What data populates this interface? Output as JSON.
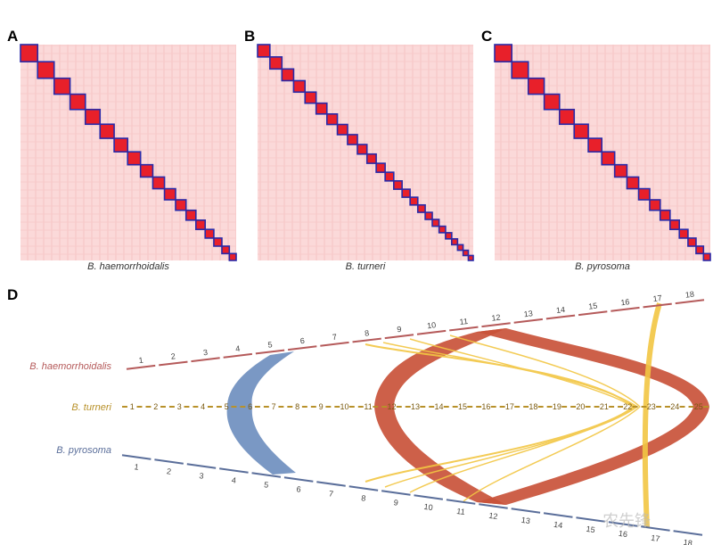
{
  "panels": [
    {
      "label": "A",
      "caption": "B. haemorrhoidalis"
    },
    {
      "label": "B",
      "caption": "B. turneri"
    },
    {
      "label": "C",
      "caption": "B. pyrosoma"
    }
  ],
  "synteny": {
    "label": "D",
    "tracks": [
      {
        "name": "B. haemorrhoidalis",
        "chromosomes": [
          1,
          2,
          3,
          4,
          5,
          6,
          7,
          8,
          9,
          10,
          11,
          12,
          13,
          14,
          15,
          16,
          17,
          18
        ]
      },
      {
        "name": "B. turneri",
        "chromosomes": [
          1,
          2,
          3,
          4,
          5,
          6,
          7,
          8,
          9,
          10,
          11,
          12,
          13,
          14,
          15,
          16,
          17,
          18,
          19,
          20,
          21,
          22,
          23,
          24,
          25
        ]
      },
      {
        "name": "B. pyrosoma",
        "chromosomes": [
          1,
          2,
          3,
          4,
          5,
          6,
          7,
          8,
          9,
          10,
          11,
          12,
          13,
          14,
          15,
          16,
          17,
          18
        ]
      }
    ]
  },
  "watermark": "农先锋"
}
